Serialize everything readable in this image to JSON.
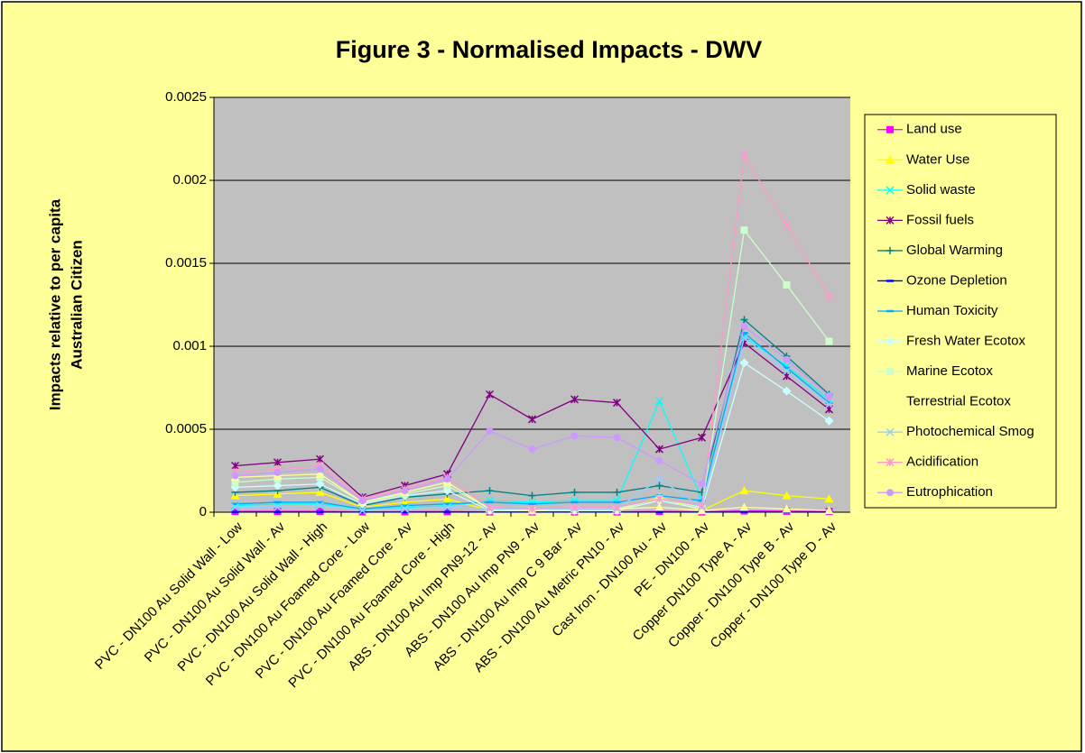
{
  "chart_data": {
    "type": "line",
    "title": "Figure 3 - Normalised Impacts - DWV",
    "y_label": [
      "Impacts relative to per capita",
      "Australian Citizen"
    ],
    "categories": [
      "PVC - DN100 Au Solid Wall - Low",
      "PVC - DN100 Au Solid Wall - Av",
      "PVC - DN100 Au Solid Wall - High",
      "PVC - DN100 Au Foamed Core - Low",
      "PVC - DN100 Au Foamed Core - Av",
      "PVC - DN100 Au Foamed Core - High",
      "ABS - DN100 Au Imp PN9-12 - Av",
      "ABS - DN100 Au Imp PN9 - Av",
      "ABS - DN100 Au Imp C 9 Bar - Av",
      "ABS - DN100 Au Metric PN10 - Av",
      "Cast Iron - DN100 Au - Av",
      "PE - DN100 - Av",
      "Copper DN100 Type A - Av",
      "Copper - DN100 Type B - Av",
      "Copper - DN100 Type D - Av"
    ],
    "ylim": [
      0,
      0.0025
    ],
    "yticks": [
      0,
      0.0005,
      0.001,
      0.0015,
      0.002,
      0.0025
    ],
    "grid": true,
    "legend": "right",
    "series": [
      {
        "name": "Land use",
        "color": "#ff00ff",
        "marker": "square",
        "values": [
          5e-06,
          5e-06,
          5e-06,
          2e-06,
          3e-06,
          4e-06,
          2e-06,
          2e-06,
          2e-06,
          2e-06,
          5e-06,
          2e-06,
          8e-06,
          6e-06,
          5e-06
        ]
      },
      {
        "name": "Water Use",
        "color": "#ffff00",
        "marker": "triangle",
        "values": [
          0.0001,
          0.00011,
          0.00012,
          3e-05,
          6e-05,
          8e-05,
          1e-05,
          1e-05,
          1e-05,
          1e-05,
          9e-05,
          1e-05,
          0.00013,
          0.0001,
          8e-05
        ]
      },
      {
        "name": "Solid waste",
        "color": "#00ffff",
        "marker": "x",
        "values": [
          4e-05,
          5e-05,
          5e-05,
          2e-05,
          3e-05,
          4e-05,
          7e-05,
          6e-05,
          7e-05,
          7e-05,
          0.00067,
          8e-05,
          0.00106,
          0.00088,
          0.00068
        ]
      },
      {
        "name": "Fossil fuels",
        "color": "#800080",
        "marker": "star",
        "values": [
          0.00028,
          0.0003,
          0.00032,
          9e-05,
          0.00016,
          0.00023,
          0.00071,
          0.00056,
          0.00068,
          0.00066,
          0.00038,
          0.00045,
          0.00102,
          0.00082,
          0.00062
        ]
      },
      {
        "name": "Global Warming",
        "color": "#008080",
        "marker": "plus",
        "values": [
          0.00012,
          0.00013,
          0.00015,
          4e-05,
          9e-05,
          0.00011,
          0.00013,
          0.0001,
          0.00012,
          0.00012,
          0.00016,
          0.00012,
          0.00116,
          0.00094,
          0.00071
        ]
      },
      {
        "name": "Ozone Depletion",
        "color": "#0000ff",
        "marker": "dash",
        "values": [
          2e-06,
          2e-06,
          2e-06,
          1e-06,
          1e-06,
          2e-06,
          1e-06,
          1e-06,
          1e-06,
          1e-06,
          2e-06,
          1e-06,
          3e-06,
          2e-06,
          2e-06
        ]
      },
      {
        "name": "Human Toxicity",
        "color": "#00aaff",
        "marker": "dash",
        "values": [
          5e-05,
          6e-05,
          6e-05,
          2e-05,
          4e-05,
          5e-05,
          6e-05,
          5e-05,
          6e-05,
          6e-05,
          0.0001,
          7e-05,
          0.00108,
          0.00087,
          0.00066
        ]
      },
      {
        "name": "Fresh Water Ecotox",
        "color": "#ccffff",
        "marker": "diamond",
        "values": [
          0.00015,
          0.00016,
          0.00017,
          5e-05,
          0.0001,
          0.00013,
          1e-05,
          1e-05,
          1e-05,
          1e-05,
          7e-05,
          2e-05,
          0.0009,
          0.00073,
          0.00055
        ]
      },
      {
        "name": "Marine Ecotox",
        "color": "#ccffcc",
        "marker": "square",
        "values": [
          0.00018,
          0.0002,
          0.00021,
          6e-05,
          0.00011,
          0.00016,
          2e-05,
          1e-05,
          2e-05,
          2e-05,
          8e-05,
          3e-05,
          0.0017,
          0.00137,
          0.00103
        ]
      },
      {
        "name": "Terrestrial Ecotox",
        "color": "#ffff99",
        "marker": "triangle",
        "values": [
          0.00021,
          0.00022,
          0.00023,
          6e-05,
          0.00012,
          0.00018,
          2e-05,
          1e-05,
          2e-05,
          2e-05,
          3e-05,
          1e-05,
          3e-05,
          2e-05,
          1e-05
        ]
      },
      {
        "name": "Photochemical Smog",
        "color": "#99ccff",
        "marker": "x",
        "values": [
          3e-05,
          3e-05,
          4e-05,
          1e-05,
          2e-05,
          3e-05,
          2e-05,
          2e-05,
          2e-05,
          2e-05,
          0.0002,
          3e-05,
          0.00105,
          0.00085,
          0.00065
        ]
      },
      {
        "name": "Acidification",
        "color": "#ff99cc",
        "marker": "star",
        "values": [
          0.00024,
          0.00026,
          0.00028,
          8e-05,
          0.00014,
          0.00021,
          3e-05,
          2e-05,
          3e-05,
          3e-05,
          8e-05,
          4e-05,
          0.00215,
          0.00173,
          0.0013
        ]
      },
      {
        "name": "Eutrophication",
        "color": "#cc99ff",
        "marker": "circle",
        "values": [
          0.00022,
          0.00024,
          0.00026,
          7e-05,
          0.00013,
          0.0002,
          0.00049,
          0.00038,
          0.00046,
          0.00045,
          0.00031,
          0.00017,
          0.00112,
          0.00092,
          0.0007
        ]
      }
    ]
  }
}
